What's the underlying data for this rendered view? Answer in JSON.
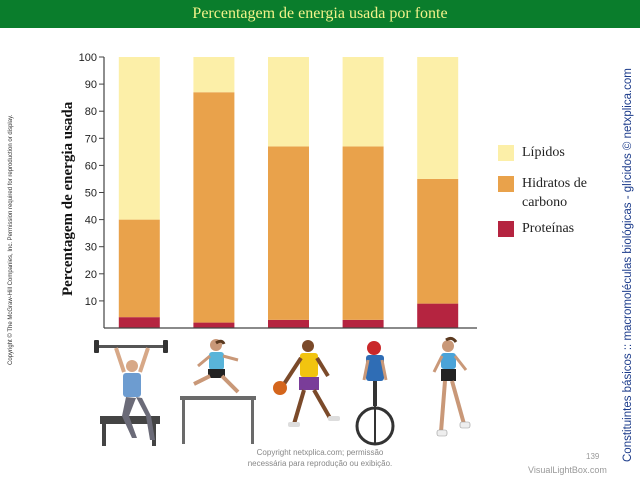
{
  "header": {
    "title": "Percentagem de energia usada por fonte"
  },
  "left_copyright": "Copyright © The McGraw-Hill Companies, Inc. Permission required for reproduction or display.",
  "right_credit": "Constituintes básicos :: macromoléculas biológicas - glícidos © netxplica.com",
  "page_number": "139",
  "watermark_line1": "Copyright netxplica.com; permissão",
  "watermark_line2": "necessária para reprodução ou exibição.",
  "footer_brand": "VisualLightBox.com",
  "colors": {
    "lipidos": "#fcefa8",
    "hidratos": "#e9a24b",
    "proteinas": "#b52440",
    "title_bar": "#0a7d2c",
    "title_text": "#f2f28a"
  },
  "chart_data": {
    "type": "bar",
    "stacked": true,
    "title": "Percentagem de energia usada por fonte",
    "xlabel": "",
    "ylabel": "Percentagem de energia usada",
    "ylim": [
      0,
      100
    ],
    "yticks": [
      10,
      20,
      30,
      40,
      50,
      60,
      70,
      80,
      90,
      100
    ],
    "categories": [
      "Levantamento de pesos",
      "Corrida de barreiras",
      "Basquetebol",
      "Ciclismo",
      "Corrida"
    ],
    "series": [
      {
        "name": "Proteínas",
        "color": "#b52440",
        "values": [
          4,
          2,
          3,
          3,
          9
        ]
      },
      {
        "name": "Hidratos de carbono",
        "color": "#e9a24b",
        "values": [
          36,
          85,
          64,
          64,
          46
        ]
      },
      {
        "name": "Lípidos",
        "color": "#fcefa8",
        "values": [
          60,
          13,
          33,
          33,
          45
        ]
      }
    ],
    "legend": {
      "position": "right",
      "items": [
        {
          "label": "Lípidos",
          "color": "#fcefa8"
        },
        {
          "label": "Hidratos de carbono",
          "color": "#e9a24b"
        },
        {
          "label": "Proteínas",
          "color": "#b52440"
        }
      ]
    }
  },
  "illustrations": [
    {
      "label": "weightlifter-icon"
    },
    {
      "label": "hurdler-icon"
    },
    {
      "label": "basketball-player-icon"
    },
    {
      "label": "cyclist-icon"
    },
    {
      "label": "runner-icon"
    }
  ]
}
